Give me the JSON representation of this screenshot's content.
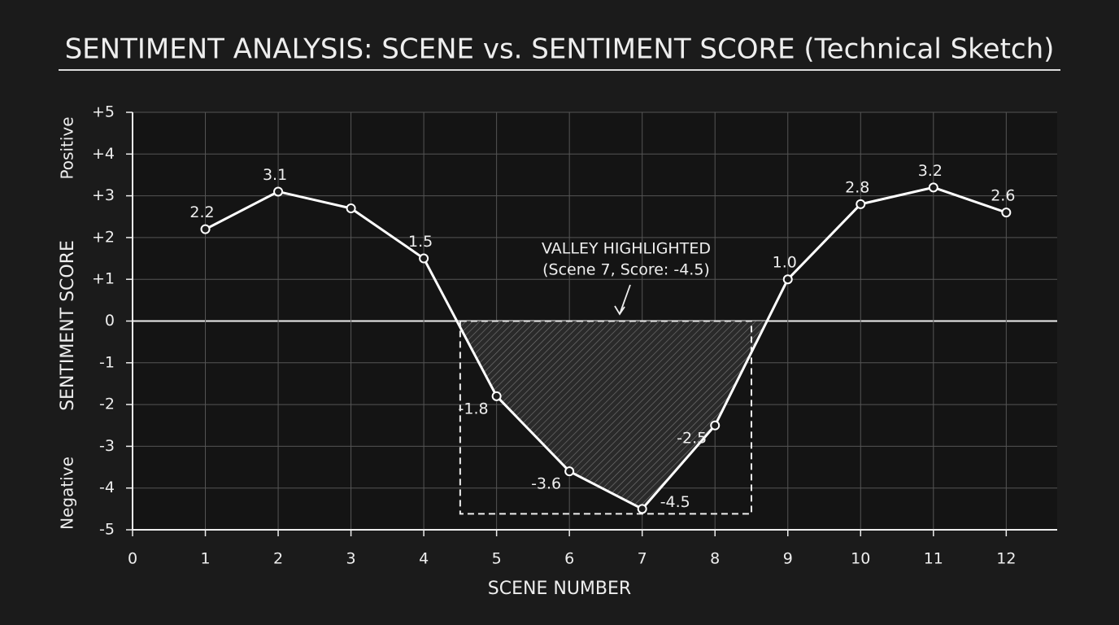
{
  "chart_data": {
    "type": "line",
    "title": "SENTIMENT ANALYSIS: SCENE vs. SENTIMENT SCORE (Technical Sketch)",
    "x_label": "SCENE NUMBER",
    "y_label": "SENTIMENT SCORE",
    "y_top_label": "Positive",
    "y_bottom_label": "Negative",
    "annotation": [
      "VALLEY HIGHLIGHTED",
      "(Scene 7, Score: -4.5)"
    ],
    "x": [
      1,
      2,
      3,
      4,
      5,
      6,
      7,
      8,
      9,
      10,
      11,
      12
    ],
    "values": [
      2.2,
      3.1,
      2.7,
      1.5,
      -1.8,
      -3.6,
      -4.5,
      -2.5,
      1.0,
      2.8,
      3.2,
      2.6
    ],
    "value_labels": [
      "2.2",
      "3.1",
      null,
      "1.5",
      "-1.8",
      "-3.6",
      "-4.5",
      "-2.5",
      "1.0",
      "2.8",
      "3.2",
      "2.6"
    ],
    "color": "#ffffff",
    "xlim": [
      0,
      12.7
    ],
    "xticks": [
      0,
      1,
      2,
      3,
      4,
      5,
      6,
      7,
      8,
      9,
      10,
      11,
      12
    ],
    "ylim": [
      -5,
      5
    ],
    "yticks": [
      {
        "value": 5,
        "label": "+5"
      },
      {
        "value": 4,
        "label": "+4"
      },
      {
        "value": 3,
        "label": "+3"
      },
      {
        "value": 2,
        "label": "+2"
      },
      {
        "value": 1,
        "label": "+1"
      },
      0,
      -1,
      -2,
      -3,
      -4,
      -5
    ],
    "grid": true,
    "highlight_negative": true
  }
}
